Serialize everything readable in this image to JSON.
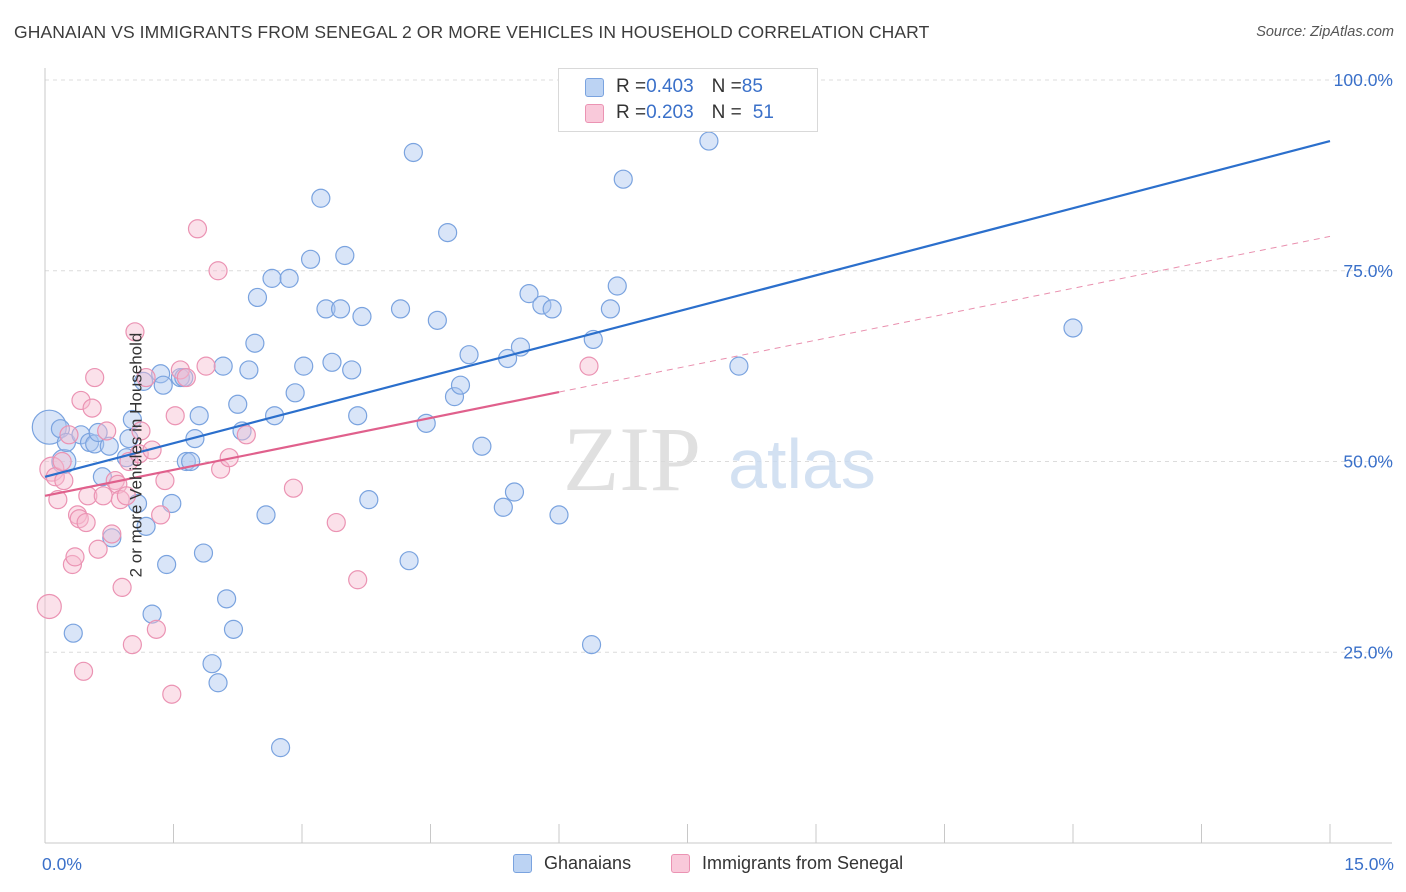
{
  "title": "GHANAIAN VS IMMIGRANTS FROM SENEGAL 2 OR MORE VEHICLES IN HOUSEHOLD CORRELATION CHART",
  "source": "Source: ZipAtlas.com",
  "watermark": {
    "zip": "ZIP",
    "atlas": "atlas"
  },
  "colors": {
    "blue_fill": "#aac6f0",
    "blue_stroke": "#7aa3df",
    "blue_line": "#2b6fcc",
    "pink_fill": "#f6bcd0",
    "pink_stroke": "#eb93b3",
    "pink_line": "#e0608c",
    "axis_text": "#3a70c9",
    "grid": "#dcdcdc"
  },
  "legend": {
    "rows": [
      {
        "r_label": "R = ",
        "r_value": "0.403",
        "n_label": "N = ",
        "n_value": "85",
        "color": "blue"
      },
      {
        "r_label": "R = ",
        "r_value": "0.203",
        "n_label": "N = ",
        "n_value": "51",
        "color": "pink"
      }
    ]
  },
  "chart_data": {
    "type": "scatter",
    "xlabel": "",
    "ylabel": "2 or more Vehicles in Household",
    "xlim": [
      0,
      15
    ],
    "ylim": [
      0,
      100
    ],
    "x_tick_labels": [
      "0.0%",
      "15.0%"
    ],
    "y_tick_labels": [
      "100.0%",
      "75.0%",
      "50.0%",
      "25.0%"
    ],
    "y_ticks": [
      100,
      75,
      50,
      25
    ],
    "grid": true,
    "legend_position": "top-center",
    "series": [
      {
        "name": "Ghanaians",
        "color": "blue",
        "trend": {
          "x0": 0,
          "y0": 48.0,
          "x1": 15,
          "y1": 92.0,
          "dashed_from": null
        },
        "points": [
          [
            0.05,
            54.5,
            "L"
          ],
          [
            0.18,
            54.3
          ],
          [
            0.22,
            50.0,
            "M"
          ],
          [
            0.25,
            52.5
          ],
          [
            0.33,
            27.5
          ],
          [
            0.42,
            53.5
          ],
          [
            0.52,
            52.5
          ],
          [
            0.58,
            52.3
          ],
          [
            0.62,
            53.8
          ],
          [
            0.67,
            48.0
          ],
          [
            0.75,
            52.0
          ],
          [
            0.78,
            40.0
          ],
          [
            0.95,
            50.5
          ],
          [
            0.98,
            53.0
          ],
          [
            1.02,
            55.5
          ],
          [
            1.08,
            44.5
          ],
          [
            1.15,
            60.5
          ],
          [
            1.18,
            41.5
          ],
          [
            1.25,
            30.0
          ],
          [
            1.35,
            61.5
          ],
          [
            1.38,
            60.0
          ],
          [
            1.42,
            36.5
          ],
          [
            1.48,
            44.5
          ],
          [
            1.58,
            61.0
          ],
          [
            1.62,
            61.0
          ],
          [
            1.65,
            50.0
          ],
          [
            1.7,
            50.0
          ],
          [
            1.75,
            53.0
          ],
          [
            1.8,
            56.0
          ],
          [
            1.85,
            38.0
          ],
          [
            1.95,
            23.5
          ],
          [
            2.02,
            21.0
          ],
          [
            2.08,
            62.5
          ],
          [
            2.12,
            32.0
          ],
          [
            2.2,
            28.0
          ],
          [
            2.25,
            57.5
          ],
          [
            2.3,
            54.0
          ],
          [
            2.38,
            62.0
          ],
          [
            2.45,
            65.5
          ],
          [
            2.48,
            71.5
          ],
          [
            2.58,
            43.0
          ],
          [
            2.65,
            74.0
          ],
          [
            2.68,
            56.0
          ],
          [
            2.75,
            12.5
          ],
          [
            2.85,
            74.0
          ],
          [
            2.92,
            59.0
          ],
          [
            3.02,
            62.5
          ],
          [
            3.1,
            76.5
          ],
          [
            3.22,
            84.5
          ],
          [
            3.28,
            70.0
          ],
          [
            3.35,
            63.0
          ],
          [
            3.45,
            70.0
          ],
          [
            3.5,
            77.0
          ],
          [
            3.58,
            62.0
          ],
          [
            3.65,
            56.0
          ],
          [
            3.7,
            69.0
          ],
          [
            3.78,
            45.0
          ],
          [
            4.15,
            70.0
          ],
          [
            4.25,
            37.0
          ],
          [
            4.3,
            90.5
          ],
          [
            4.45,
            55.0
          ],
          [
            4.58,
            68.5
          ],
          [
            4.7,
            80.0
          ],
          [
            4.78,
            58.5
          ],
          [
            4.85,
            60.0
          ],
          [
            4.95,
            64.0
          ],
          [
            5.1,
            52.0
          ],
          [
            5.35,
            44.0
          ],
          [
            5.4,
            63.5
          ],
          [
            5.48,
            46.0
          ],
          [
            5.55,
            65.0
          ],
          [
            5.65,
            72.0
          ],
          [
            5.8,
            70.5
          ],
          [
            5.92,
            70.0
          ],
          [
            6.0,
            43.0
          ],
          [
            6.38,
            26.0
          ],
          [
            6.4,
            66.0
          ],
          [
            6.6,
            70.0
          ],
          [
            6.68,
            73.0
          ],
          [
            6.75,
            87.0
          ],
          [
            7.75,
            92.0
          ],
          [
            8.1,
            62.5
          ],
          [
            12.0,
            67.5
          ]
        ]
      },
      {
        "name": "Immigrants from Senegal",
        "color": "pink",
        "trend": {
          "x0": 0,
          "y0": 45.5,
          "x1": 15,
          "y1": 79.5,
          "dashed_from": 6.0
        },
        "points": [
          [
            0.05,
            31.0,
            "M"
          ],
          [
            0.08,
            49.0,
            "M"
          ],
          [
            0.12,
            48.0
          ],
          [
            0.15,
            45.0
          ],
          [
            0.2,
            50.0
          ],
          [
            0.22,
            47.5
          ],
          [
            0.28,
            53.5
          ],
          [
            0.32,
            36.5
          ],
          [
            0.35,
            37.5
          ],
          [
            0.38,
            43.0
          ],
          [
            0.4,
            42.5
          ],
          [
            0.42,
            58.0
          ],
          [
            0.45,
            22.5
          ],
          [
            0.48,
            42.0
          ],
          [
            0.5,
            45.5
          ],
          [
            0.55,
            57.0
          ],
          [
            0.58,
            61.0
          ],
          [
            0.62,
            38.5
          ],
          [
            0.68,
            45.5
          ],
          [
            0.72,
            54.0
          ],
          [
            0.78,
            40.5
          ],
          [
            0.82,
            47.5
          ],
          [
            0.85,
            47.0
          ],
          [
            0.88,
            45.0
          ],
          [
            0.9,
            33.5
          ],
          [
            0.95,
            45.5
          ],
          [
            0.98,
            50.0
          ],
          [
            1.02,
            26.0
          ],
          [
            1.05,
            67.0
          ],
          [
            1.1,
            51.0
          ],
          [
            1.12,
            54.0
          ],
          [
            1.18,
            61.0
          ],
          [
            1.25,
            51.5
          ],
          [
            1.3,
            28.0
          ],
          [
            1.35,
            43.0
          ],
          [
            1.4,
            47.5
          ],
          [
            1.48,
            19.5
          ],
          [
            1.52,
            56.0
          ],
          [
            1.58,
            62.0
          ],
          [
            1.65,
            61.0
          ],
          [
            1.78,
            80.5
          ],
          [
            1.88,
            62.5
          ],
          [
            2.02,
            75.0
          ],
          [
            2.05,
            49.0
          ],
          [
            2.15,
            50.5
          ],
          [
            2.35,
            53.5
          ],
          [
            2.9,
            46.5
          ],
          [
            3.4,
            42.0
          ],
          [
            3.65,
            34.5
          ],
          [
            6.35,
            62.5
          ]
        ]
      }
    ]
  },
  "bottom_legend": [
    {
      "label": "Ghanaians",
      "color": "blue"
    },
    {
      "label": "Immigrants from Senegal",
      "color": "pink"
    }
  ]
}
